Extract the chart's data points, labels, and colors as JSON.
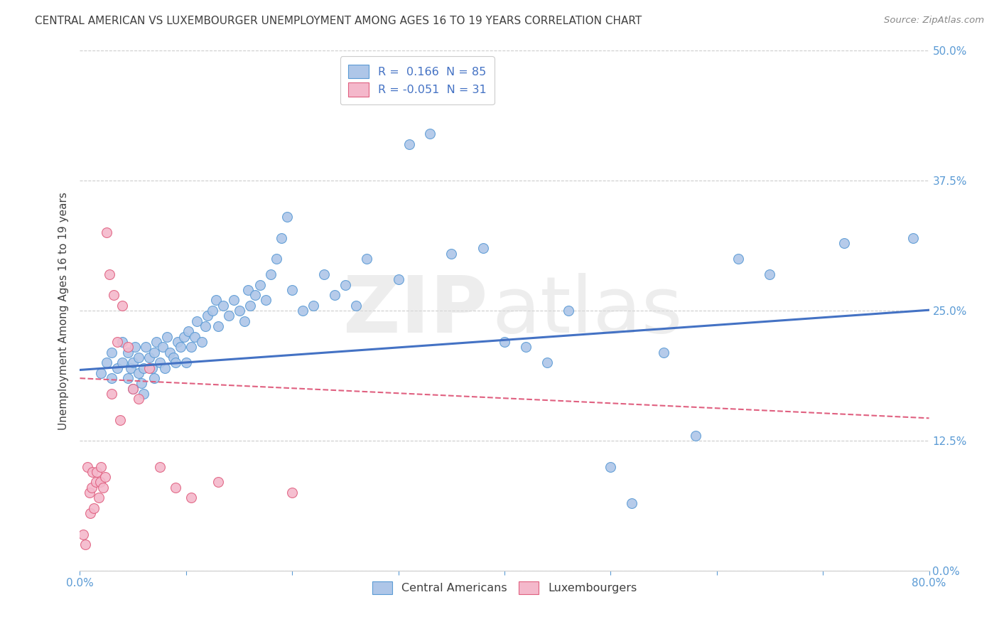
{
  "title": "CENTRAL AMERICAN VS LUXEMBOURGER UNEMPLOYMENT AMONG AGES 16 TO 19 YEARS CORRELATION CHART",
  "source": "Source: ZipAtlas.com",
  "ylabel": "Unemployment Among Ages 16 to 19 years",
  "xlim": [
    0.0,
    0.8
  ],
  "ylim": [
    0.0,
    0.5
  ],
  "ca_color": "#aec6e8",
  "ca_edge_color": "#5b9bd5",
  "lux_color": "#f4b8cb",
  "lux_edge_color": "#e06080",
  "ca_line_color": "#4472c4",
  "lux_line_color": "#e06080",
  "background_color": "#ffffff",
  "grid_color": "#cccccc",
  "title_color": "#404040",
  "ylabel_color": "#404040",
  "right_tick_color": "#5b9bd5",
  "xtick_color": "#5b9bd5",
  "legend_edge_color": "#cccccc",
  "ca_r": "0.166",
  "ca_n": "85",
  "lux_r": "-0.051",
  "lux_n": "31",
  "ca_intercept": 0.193,
  "ca_slope": 0.072,
  "lux_intercept": 0.185,
  "lux_slope": -0.048,
  "ca_x": [
    0.02,
    0.025,
    0.03,
    0.03,
    0.035,
    0.04,
    0.04,
    0.045,
    0.045,
    0.048,
    0.05,
    0.05,
    0.052,
    0.055,
    0.055,
    0.058,
    0.06,
    0.06,
    0.062,
    0.065,
    0.068,
    0.07,
    0.07,
    0.072,
    0.075,
    0.078,
    0.08,
    0.082,
    0.085,
    0.088,
    0.09,
    0.092,
    0.095,
    0.098,
    0.1,
    0.102,
    0.105,
    0.108,
    0.11,
    0.115,
    0.118,
    0.12,
    0.125,
    0.128,
    0.13,
    0.135,
    0.14,
    0.145,
    0.15,
    0.155,
    0.158,
    0.16,
    0.165,
    0.17,
    0.175,
    0.18,
    0.185,
    0.19,
    0.195,
    0.2,
    0.21,
    0.22,
    0.23,
    0.24,
    0.25,
    0.26,
    0.27,
    0.285,
    0.3,
    0.31,
    0.33,
    0.35,
    0.38,
    0.4,
    0.42,
    0.44,
    0.46,
    0.5,
    0.52,
    0.55,
    0.58,
    0.62,
    0.65,
    0.72,
    0.785
  ],
  "ca_y": [
    0.19,
    0.2,
    0.185,
    0.21,
    0.195,
    0.2,
    0.22,
    0.185,
    0.21,
    0.195,
    0.175,
    0.2,
    0.215,
    0.19,
    0.205,
    0.18,
    0.17,
    0.195,
    0.215,
    0.205,
    0.195,
    0.185,
    0.21,
    0.22,
    0.2,
    0.215,
    0.195,
    0.225,
    0.21,
    0.205,
    0.2,
    0.22,
    0.215,
    0.225,
    0.2,
    0.23,
    0.215,
    0.225,
    0.24,
    0.22,
    0.235,
    0.245,
    0.25,
    0.26,
    0.235,
    0.255,
    0.245,
    0.26,
    0.25,
    0.24,
    0.27,
    0.255,
    0.265,
    0.275,
    0.26,
    0.285,
    0.3,
    0.32,
    0.34,
    0.27,
    0.25,
    0.255,
    0.285,
    0.265,
    0.275,
    0.255,
    0.3,
    0.455,
    0.28,
    0.41,
    0.42,
    0.305,
    0.31,
    0.22,
    0.215,
    0.2,
    0.25,
    0.1,
    0.065,
    0.21,
    0.13,
    0.3,
    0.285,
    0.315,
    0.32
  ],
  "lux_x": [
    0.003,
    0.005,
    0.007,
    0.009,
    0.01,
    0.011,
    0.012,
    0.013,
    0.015,
    0.016,
    0.018,
    0.019,
    0.02,
    0.022,
    0.024,
    0.025,
    0.028,
    0.03,
    0.032,
    0.035,
    0.038,
    0.04,
    0.045,
    0.05,
    0.055,
    0.065,
    0.075,
    0.09,
    0.105,
    0.13,
    0.2
  ],
  "lux_y": [
    0.035,
    0.025,
    0.1,
    0.075,
    0.055,
    0.08,
    0.095,
    0.06,
    0.085,
    0.095,
    0.07,
    0.085,
    0.1,
    0.08,
    0.09,
    0.325,
    0.285,
    0.17,
    0.265,
    0.22,
    0.145,
    0.255,
    0.215,
    0.175,
    0.165,
    0.195,
    0.1,
    0.08,
    0.07,
    0.085,
    0.075
  ]
}
